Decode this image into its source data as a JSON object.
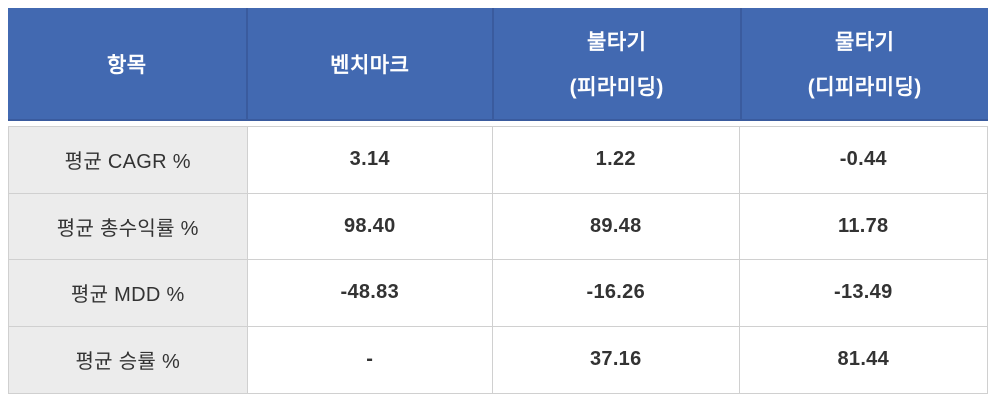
{
  "colors": {
    "header_bg": "#4269b1",
    "header_border": "#3a5b9e",
    "header_text": "#ffffff",
    "row_label_bg": "#ececec",
    "cell_border": "#d0d0d0",
    "body_text": "#333333"
  },
  "table": {
    "header": [
      {
        "label": "항목",
        "sub": ""
      },
      {
        "label": "벤치마크",
        "sub": ""
      },
      {
        "label": "불타기",
        "sub": "(피라미딩)"
      },
      {
        "label": "물타기",
        "sub": "(디피라미딩)"
      }
    ],
    "rows": [
      {
        "label": "평균 CAGR %",
        "values": [
          "3.14",
          "1.22",
          "-0.44"
        ]
      },
      {
        "label": "평균 총수익률 %",
        "values": [
          "98.40",
          "89.48",
          "11.78"
        ]
      },
      {
        "label": "평균 MDD %",
        "values": [
          "-48.83",
          "-16.26",
          "-13.49"
        ]
      },
      {
        "label": "평균 승률 %",
        "values": [
          "-",
          "37.16",
          "81.44"
        ]
      }
    ]
  },
  "chart_data": {
    "type": "table",
    "title": "",
    "columns": [
      "항목",
      "벤치마크",
      "불타기 (피라미딩)",
      "물타기 (디피라미딩)"
    ],
    "rows": [
      [
        "평균 CAGR %",
        3.14,
        1.22,
        -0.44
      ],
      [
        "평균 총수익률 %",
        98.4,
        89.48,
        11.78
      ],
      [
        "평균 MDD %",
        -48.83,
        -16.26,
        -13.49
      ],
      [
        "평균 승률 %",
        "-",
        37.16,
        81.44
      ]
    ]
  }
}
